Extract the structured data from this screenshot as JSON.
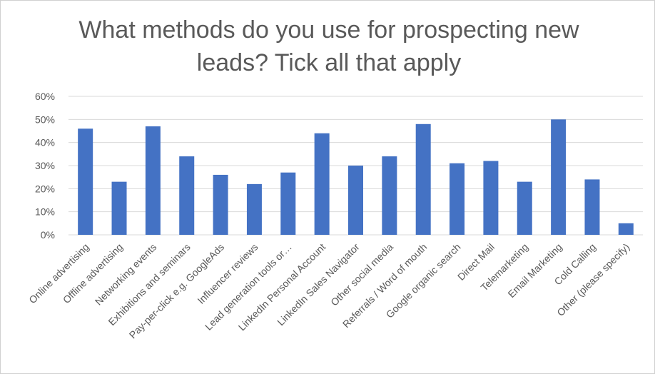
{
  "chart_data": {
    "type": "bar",
    "title": "What methods do you use for prospecting new leads? Tick all that apply",
    "categories": [
      "Online advertising",
      "Offline advertising",
      "Networking events",
      "Exhibitions and seminars",
      "Pay-per-click e.g. GoogleAds",
      "Influencer reviews",
      "Lead generation tools or…",
      "LinkedIn Personal Account",
      "LinkedIn Sales Navigator",
      "Other social media",
      "Referrals / Word of mouth",
      "Google organic search",
      "Direct Mail",
      "Telemarketing",
      "Email Marketing",
      "Cold Calling",
      "Other (please specify)"
    ],
    "values": [
      46,
      23,
      47,
      34,
      26,
      22,
      27,
      44,
      30,
      34,
      48,
      31,
      32,
      23,
      50,
      24,
      5
    ],
    "yticks": [
      "0%",
      "10%",
      "20%",
      "30%",
      "40%",
      "50%",
      "60%"
    ],
    "ylim": [
      0,
      60
    ],
    "grid": true,
    "legend": "none",
    "bar_color": "#4472C4"
  }
}
